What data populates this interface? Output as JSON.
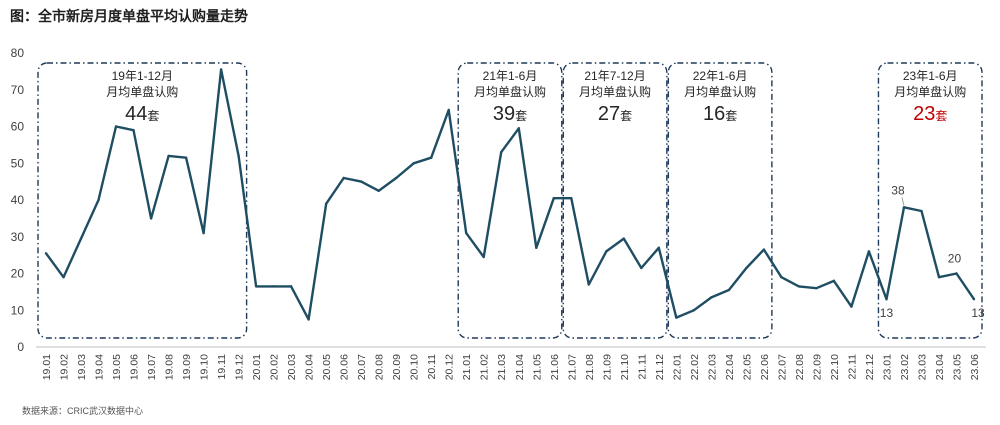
{
  "title": "图：全市新房月度单盘平均认购量走势",
  "source": "数据来源：CRIC武汉数据中心",
  "colors": {
    "line": "#1f4e63",
    "box": "#1f3a58",
    "highlight": "#c00000",
    "text": "#404040",
    "axis": "#bfbfbf"
  },
  "chart_data": {
    "type": "line",
    "ylim": [
      0,
      80
    ],
    "yticks": [
      0,
      10,
      20,
      30,
      40,
      50,
      60,
      70,
      80
    ],
    "categories": [
      "19.01",
      "19.02",
      "19.03",
      "19.04",
      "19.05",
      "19.06",
      "19.07",
      "19.08",
      "19.09",
      "19.10",
      "19.11",
      "19.12",
      "20.01",
      "20.02",
      "20.03",
      "20.04",
      "20.05",
      "20.06",
      "20.07",
      "20.08",
      "20.09",
      "20.10",
      "20.11",
      "20.12",
      "21.01",
      "21.02",
      "21.03",
      "21.04",
      "21.05",
      "21.06",
      "21.07",
      "21.08",
      "21.09",
      "21.10",
      "21.11",
      "21.12",
      "22.01",
      "22.02",
      "22.03",
      "22.04",
      "22.05",
      "22.06",
      "22.07",
      "22.08",
      "22.09",
      "22.10",
      "22.11",
      "22.12",
      "23.01",
      "23.02",
      "23.03",
      "23.04",
      "23.05",
      "23.06"
    ],
    "series": [
      {
        "values": [
          25.5,
          19,
          29.5,
          40,
          60,
          59,
          35,
          52,
          51.5,
          31,
          75.5,
          52,
          16.5,
          16.5,
          16.5,
          7.5,
          39,
          46,
          45,
          42.5,
          46,
          50,
          51.5,
          64.5,
          31,
          24.5,
          53,
          59.5,
          27,
          40.5,
          40.5,
          17,
          26,
          29.5,
          21.5,
          27,
          8,
          10,
          13.5,
          15.5,
          21.5,
          26.5,
          19,
          16.5,
          16,
          18,
          11,
          26,
          13,
          38,
          37,
          19,
          20,
          13
        ]
      }
    ],
    "point_labels": [
      {
        "index": 48,
        "text": "13"
      },
      {
        "index": 49,
        "text": "38"
      },
      {
        "index": 52,
        "text": "20"
      },
      {
        "index": 53,
        "text": "13"
      }
    ],
    "annotations": [
      {
        "start": 0,
        "end": 11,
        "period": "19年1-12月",
        "caption": "月均单盘认购",
        "value": "44",
        "unit": "套",
        "highlight": false
      },
      {
        "start": 24,
        "end": 29,
        "period": "21年1-6月",
        "caption": "月均单盘认购",
        "value": "39",
        "unit": "套",
        "highlight": false
      },
      {
        "start": 30,
        "end": 35,
        "period": "21年7-12月",
        "caption": "月均单盘认购",
        "value": "27",
        "unit": "套",
        "highlight": false
      },
      {
        "start": 36,
        "end": 41,
        "period": "22年1-6月",
        "caption": "月均单盘认购",
        "value": "16",
        "unit": "套",
        "highlight": false
      },
      {
        "start": 48,
        "end": 53,
        "period": "23年1-6月",
        "caption": "月均单盘认购",
        "value": "23",
        "unit": "套",
        "highlight": true
      }
    ]
  }
}
